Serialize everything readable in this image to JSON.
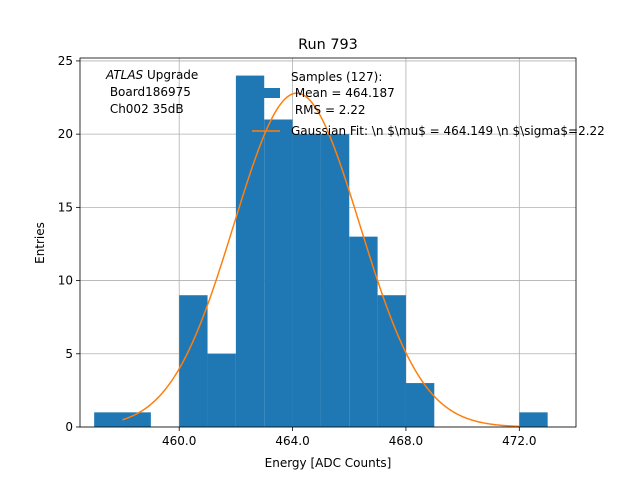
{
  "chart_data": {
    "type": "bar",
    "title": "Run 793",
    "xlabel": "Energy [ADC Counts]",
    "ylabel": "Entries",
    "xlim": [
      456.5,
      474.0
    ],
    "ylim": [
      0,
      25.2
    ],
    "xticks": [
      460,
      464,
      468,
      472
    ],
    "xtick_labels": [
      "460.0",
      "464.0",
      "468.0",
      "472.0"
    ],
    "yticks": [
      0,
      5,
      10,
      15,
      20,
      25
    ],
    "ytick_labels": [
      "0",
      "5",
      "10",
      "15",
      "20",
      "25"
    ],
    "grid": true,
    "bin_width": 1,
    "bins": [
      {
        "x0": 457,
        "x1": 458,
        "count": 1
      },
      {
        "x0": 458,
        "x1": 459,
        "count": 1
      },
      {
        "x0": 460,
        "x1": 461,
        "count": 9
      },
      {
        "x0": 461,
        "x1": 462,
        "count": 5
      },
      {
        "x0": 462,
        "x1": 463,
        "count": 24
      },
      {
        "x0": 463,
        "x1": 464,
        "count": 21
      },
      {
        "x0": 464,
        "x1": 465,
        "count": 20
      },
      {
        "x0": 465,
        "x1": 466,
        "count": 20
      },
      {
        "x0": 466,
        "x1": 467,
        "count": 13
      },
      {
        "x0": 467,
        "x1": 468,
        "count": 9
      },
      {
        "x0": 468,
        "x1": 469,
        "count": 3
      },
      {
        "x0": 472,
        "x1": 473,
        "count": 1
      }
    ],
    "histogram_color": "#1f77b4",
    "fit": {
      "label": "Gaussian Fit: \\n $\\mu$ = 464.149 \\n $\\sigma$=2.22",
      "mu": 464.149,
      "sigma": 2.22,
      "amplitude": 22.8,
      "x_range": [
        458.0,
        472.0
      ],
      "color": "#ff7f0e"
    },
    "legend": {
      "placement": "top-right",
      "samples_lines": [
        "Samples (127):",
        " Mean = 464.187",
        " RMS = 2.22"
      ]
    },
    "annotation": {
      "italic": "ATLAS",
      "rest": " Upgrade",
      "lines": [
        " Board186975",
        " Ch002 35dB"
      ]
    }
  }
}
